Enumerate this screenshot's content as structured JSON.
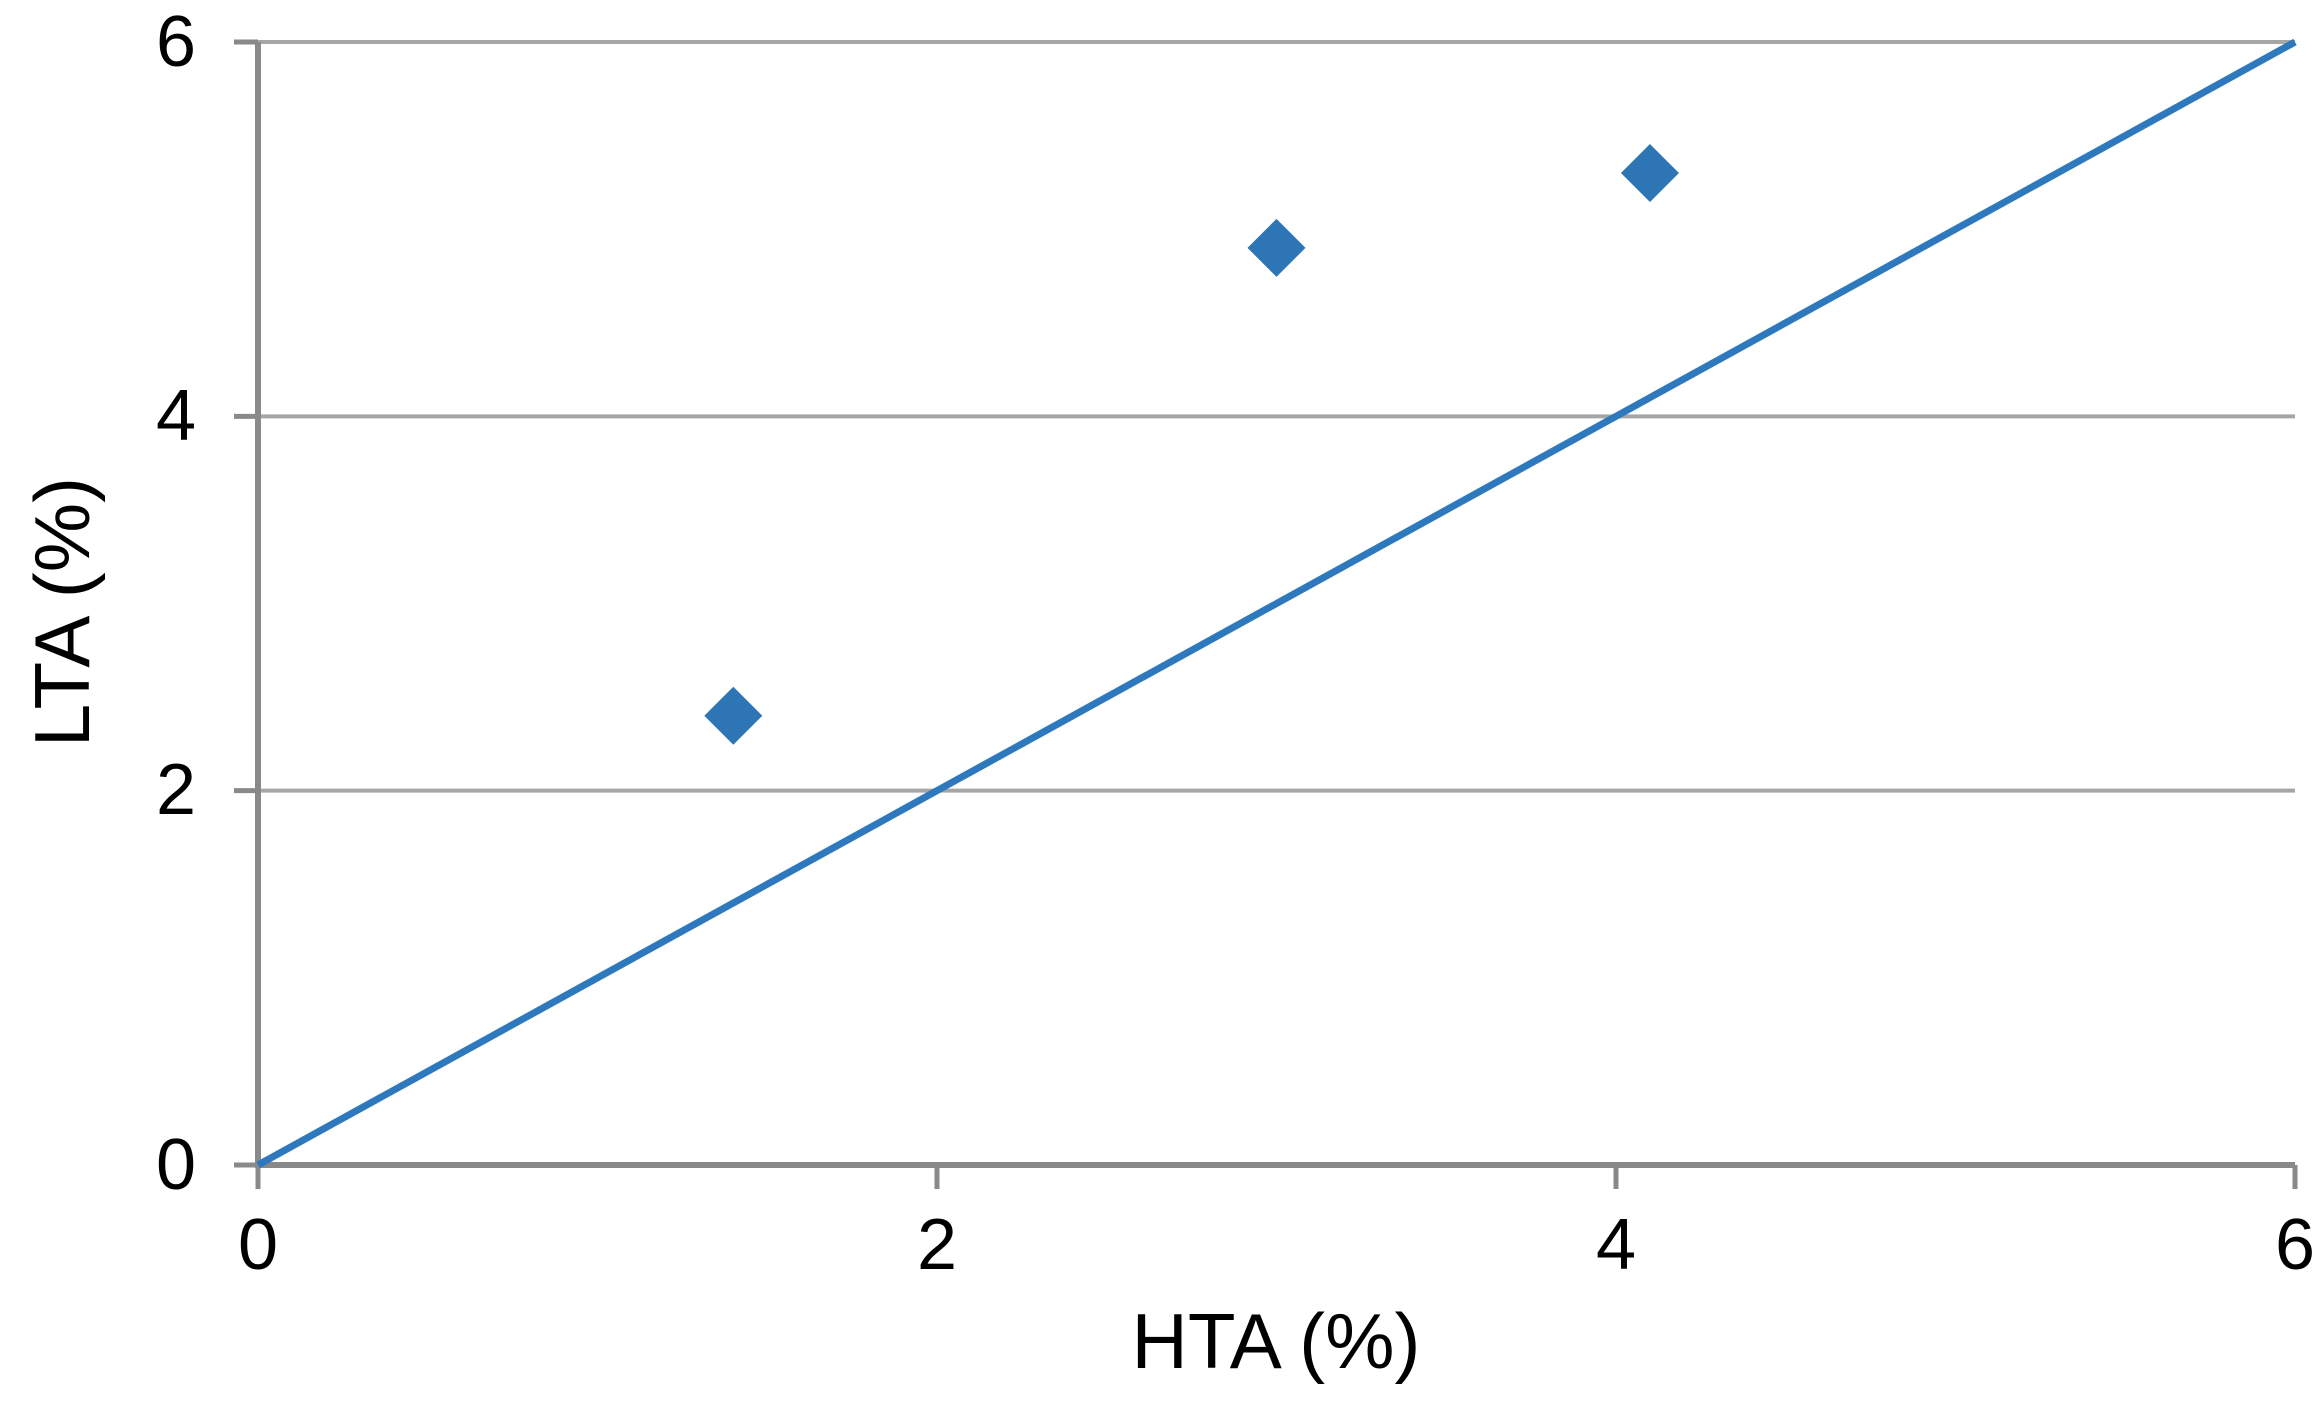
{
  "page": {
    "background": "#FFFFFF"
  },
  "chart_data": {
    "type": "scatter",
    "title": "",
    "xlabel": "HTA (%)",
    "ylabel": "LTA (%)",
    "xlim": [
      0,
      6
    ],
    "ylim": [
      0,
      6
    ],
    "x_ticks": [
      0,
      2,
      4,
      6
    ],
    "y_ticks": [
      0,
      2,
      4,
      6
    ],
    "gridlines_y": [
      2,
      4,
      6
    ],
    "grid": "horizontal-only",
    "legend": "none",
    "series": [
      {
        "name": "Identity line",
        "type": "line",
        "points": [
          [
            0,
            0
          ],
          [
            6,
            6
          ]
        ]
      },
      {
        "name": "Data points",
        "type": "scatter",
        "marker": "diamond",
        "points": [
          [
            1.4,
            2.4
          ],
          [
            3.0,
            4.9
          ],
          [
            4.1,
            5.3
          ]
        ]
      }
    ],
    "colors": {
      "marker": "#2E75B6",
      "line": "#2E79BE",
      "axis": "#898989",
      "gridline": "#A6A6A6",
      "text": "#000000",
      "background": "#FFFFFF"
    }
  }
}
